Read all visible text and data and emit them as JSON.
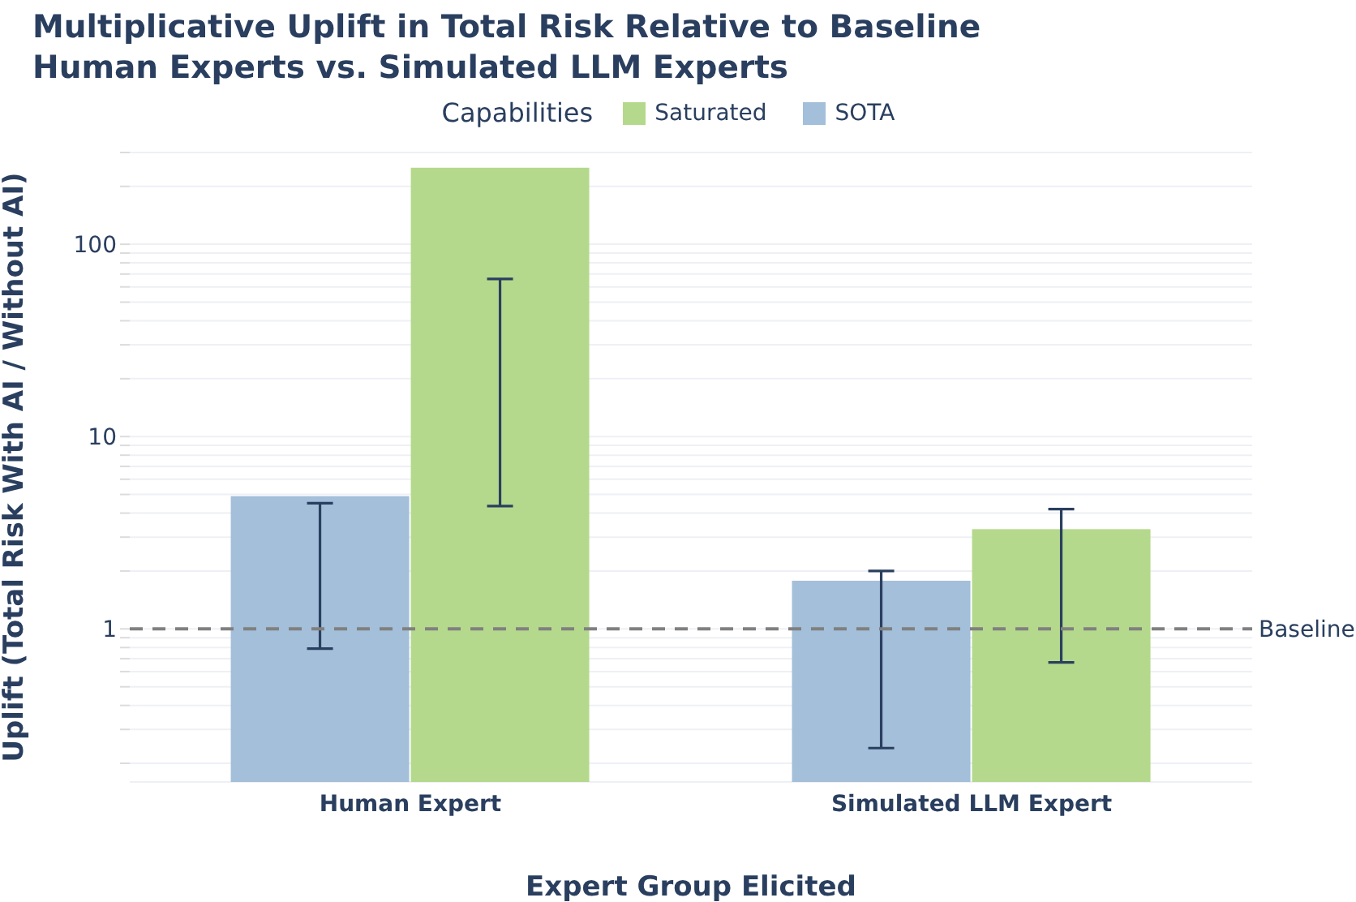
{
  "chart_data": {
    "type": "bar",
    "title": "Multiplicative Uplift in Total Risk Relative to Baseline\nHuman Experts vs. Simulated LLM Experts",
    "xlabel": "Expert Group Elicited",
    "ylabel": "Uplift (Total Risk With AI / Without AI)",
    "legend_title": "Capabilities",
    "categories": [
      "Human Expert",
      "Simulated LLM Expert"
    ],
    "series": [
      {
        "name": "SOTA",
        "color": "#a3bfd9",
        "values": [
          4.9,
          1.78
        ],
        "errors": [
          [
            0.79,
            4.5
          ],
          [
            0.24,
            2.0
          ]
        ]
      },
      {
        "name": "Saturated",
        "color": "#b5d98c",
        "values": [
          250,
          3.3
        ],
        "errors": [
          [
            4.35,
            66
          ],
          [
            0.67,
            4.2
          ]
        ]
      }
    ],
    "log": "y",
    "ylim": [
      0.16,
      300
    ],
    "yticks": [
      {
        "value": 0.2,
        "label": null
      },
      {
        "value": 0.3,
        "label": null
      },
      {
        "value": 0.4,
        "label": null
      },
      {
        "value": 0.5,
        "label": null
      },
      {
        "value": 0.6,
        "label": null
      },
      {
        "value": 0.7,
        "label": null
      },
      {
        "value": 0.8,
        "label": null
      },
      {
        "value": 0.9,
        "label": null
      },
      1,
      {
        "value": 2,
        "label": null
      },
      {
        "value": 3,
        "label": null
      },
      {
        "value": 4,
        "label": null
      },
      {
        "value": 5,
        "label": null
      },
      {
        "value": 6,
        "label": null
      },
      {
        "value": 7,
        "label": null
      },
      {
        "value": 8,
        "label": null
      },
      {
        "value": 9,
        "label": null
      },
      10,
      {
        "value": 20,
        "label": null
      },
      {
        "value": 30,
        "label": null
      },
      {
        "value": 40,
        "label": null
      },
      {
        "value": 50,
        "label": null
      },
      {
        "value": 60,
        "label": null
      },
      {
        "value": 70,
        "label": null
      },
      {
        "value": 80,
        "label": null
      },
      {
        "value": 90,
        "label": null
      },
      100,
      {
        "value": 200,
        "label": null
      },
      {
        "value": 300,
        "label": null
      }
    ],
    "grid": "y",
    "legend": "top",
    "ref_lines": [
      {
        "axis": "y",
        "value": 1,
        "label": "Baseline",
        "color": "#808080",
        "line_style": "dashed"
      }
    ]
  }
}
